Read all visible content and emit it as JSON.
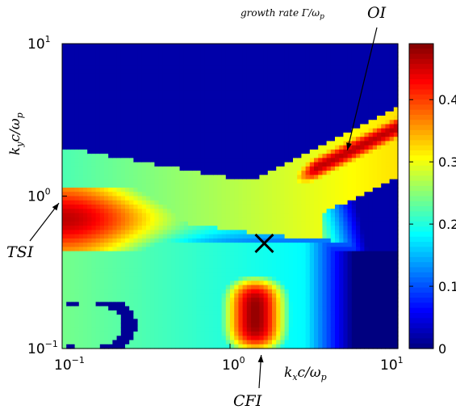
{
  "chart_data": {
    "type": "heatmap",
    "title": "growth rate Γ/ω",
    "title_sub": "p",
    "xlabel": "k",
    "xlabel_sub": "x",
    "xlabel_mid": "c/ω",
    "xlabel_sub2": "p",
    "ylabel": "k",
    "ylabel_sub": "y",
    "ylabel_mid": "c/ω",
    "ylabel_sub2": "p",
    "x_scale": "log",
    "y_scale": "log",
    "xlim": [
      0.1,
      10
    ],
    "ylim": [
      0.1,
      10
    ],
    "x_ticks": [
      {
        "value": 0.1,
        "base": "10",
        "exp": "−1"
      },
      {
        "value": 1,
        "base": "10",
        "exp": "0"
      },
      {
        "value": 10,
        "base": "10",
        "exp": "1"
      }
    ],
    "y_ticks": [
      {
        "value": 0.1,
        "base": "10",
        "exp": "−1"
      },
      {
        "value": 1,
        "base": "10",
        "exp": "0"
      },
      {
        "value": 10,
        "base": "10",
        "exp": "1"
      }
    ],
    "colorbar": {
      "colormap": "jet",
      "range": [
        0,
        0.49
      ],
      "ticks": [
        "0",
        "0.1",
        "0.2",
        "0.3",
        "0.4"
      ],
      "tick_values": [
        0,
        0.1,
        0.2,
        0.3,
        0.4
      ]
    },
    "grid": false,
    "marker": {
      "symbol": "×",
      "kx": 1.6,
      "ky": 0.49
    },
    "annotations": [
      {
        "label": "OI",
        "target_kx": 5.0,
        "target_ky": 2.0
      },
      {
        "label": "TSI",
        "target_kx": 0.1,
        "target_ky": 0.9
      },
      {
        "label": "CFI",
        "target_kx": 1.5,
        "target_ky": 0.1
      }
    ],
    "regions": [
      {
        "name": "CFI",
        "peak": 0.48,
        "kx_center": 1.4,
        "ky_center": 0.17
      },
      {
        "name": "OI",
        "peak": 0.47,
        "kx_center": 4.5,
        "ky_center": 2.2
      },
      {
        "name": "TSI",
        "peak": 0.3,
        "kx_center": 0.11,
        "ky_center": 0.85
      }
    ]
  }
}
